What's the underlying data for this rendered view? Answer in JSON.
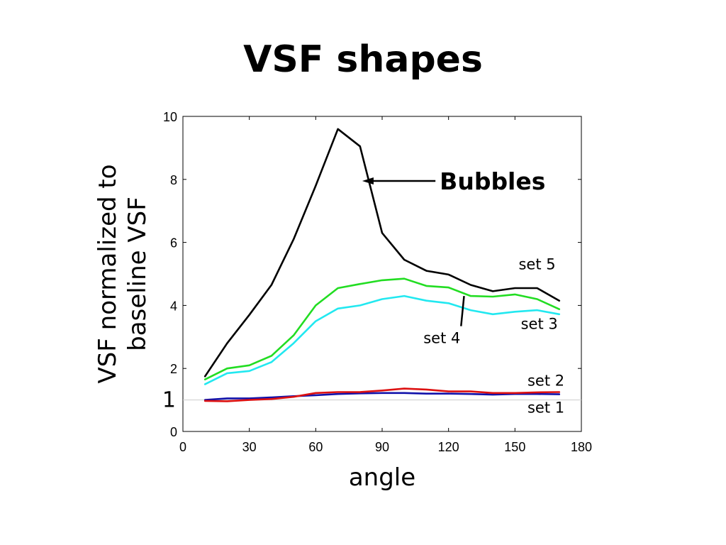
{
  "slide": {
    "title": "VSF shapes"
  },
  "chart_data": {
    "type": "line",
    "title": "VSF shapes",
    "xlabel": "angle",
    "ylabel": "VSF normalized to baseline VSF",
    "ylabel_lines": [
      "VSF normalized to",
      "baseline VSF"
    ],
    "xlim": [
      0,
      180
    ],
    "ylim": [
      0,
      10
    ],
    "xticks": [
      0,
      30,
      60,
      90,
      120,
      150,
      180
    ],
    "yticks": [
      0,
      2,
      4,
      6,
      8,
      10
    ],
    "extra_ytick": {
      "value": 1,
      "label": "1"
    },
    "reference_line": {
      "y": 1,
      "color": "#cccccc"
    },
    "grid": false,
    "x": [
      10,
      20,
      30,
      40,
      50,
      60,
      70,
      80,
      90,
      100,
      110,
      120,
      130,
      140,
      150,
      160,
      170
    ],
    "series": [
      {
        "name": "set 5",
        "color": "#000000",
        "values": [
          1.75,
          2.8,
          3.7,
          4.65,
          6.1,
          7.8,
          9.6,
          9.05,
          6.3,
          5.45,
          5.1,
          4.98,
          4.65,
          4.45,
          4.55,
          4.55,
          4.15
        ]
      },
      {
        "name": "set 4",
        "color": "#22dd22",
        "values": [
          1.65,
          2.0,
          2.1,
          2.4,
          3.05,
          4.0,
          4.55,
          4.68,
          4.8,
          4.85,
          4.62,
          4.57,
          4.3,
          4.28,
          4.35,
          4.2,
          3.88
        ]
      },
      {
        "name": "set 3",
        "color": "#22e8f0",
        "values": [
          1.5,
          1.85,
          1.92,
          2.2,
          2.8,
          3.5,
          3.9,
          4.0,
          4.2,
          4.3,
          4.15,
          4.07,
          3.85,
          3.72,
          3.8,
          3.85,
          3.72
        ]
      },
      {
        "name": "set 2",
        "color": "#dd1111",
        "values": [
          0.97,
          0.96,
          1.0,
          1.03,
          1.1,
          1.22,
          1.25,
          1.25,
          1.3,
          1.36,
          1.33,
          1.27,
          1.27,
          1.22,
          1.22,
          1.24,
          1.25
        ]
      },
      {
        "name": "set 1",
        "color": "#1111aa",
        "values": [
          1.0,
          1.05,
          1.05,
          1.08,
          1.12,
          1.15,
          1.19,
          1.21,
          1.22,
          1.22,
          1.2,
          1.2,
          1.19,
          1.17,
          1.19,
          1.19,
          1.18
        ]
      }
    ],
    "series_labels": [
      {
        "text": "set 5",
        "series": "set 5",
        "at_x": 160,
        "at_y": 5.15
      },
      {
        "text": "set 3",
        "series": "set 3",
        "at_x": 161,
        "at_y": 3.25
      },
      {
        "text": "set 4",
        "series": "set 4",
        "at_x": 117,
        "at_y": 2.8,
        "pointer_to": [
          127,
          4.3
        ]
      },
      {
        "text": "set 2",
        "series": "set 2",
        "at_x": 164,
        "at_y": 1.45
      },
      {
        "text": "set 1",
        "series": "set 1",
        "at_x": 164,
        "at_y": 0.6
      }
    ],
    "annotations": [
      {
        "text": "Bubbles",
        "arrow_to": [
          81,
          7.95
        ],
        "text_at": [
          116,
          7.95
        ]
      }
    ]
  }
}
